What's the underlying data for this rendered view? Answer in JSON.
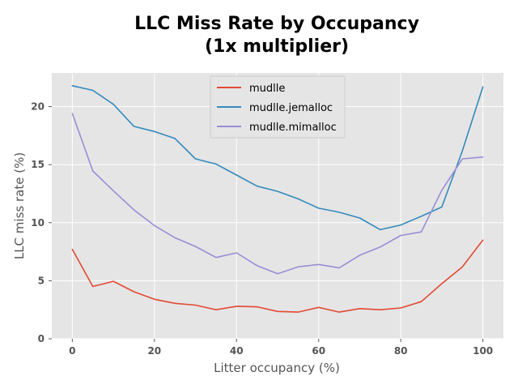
{
  "chart_data": {
    "type": "line",
    "title_lines": [
      "LLC Miss Rate by Occupancy",
      "(1x multiplier)"
    ],
    "xlabel": "Litter occupancy (%)",
    "ylabel": "LLC miss rate (%)",
    "xlim": [
      -5,
      105
    ],
    "ylim": [
      0,
      22.9
    ],
    "xticks": [
      0,
      20,
      40,
      60,
      80,
      100
    ],
    "yticks": [
      0,
      5,
      10,
      15,
      20
    ],
    "grid": true,
    "legend": "top-center",
    "x": [
      0,
      5,
      10,
      15,
      20,
      25,
      30,
      35,
      40,
      45,
      50,
      55,
      60,
      65,
      70,
      75,
      80,
      85,
      90,
      95,
      100
    ],
    "series": [
      {
        "name": "mudlle",
        "color": "#e24a33",
        "values": [
          7.7,
          4.5,
          4.95,
          4.05,
          3.4,
          3.05,
          2.9,
          2.5,
          2.8,
          2.75,
          2.35,
          2.3,
          2.7,
          2.3,
          2.6,
          2.5,
          2.65,
          3.2,
          4.75,
          6.2,
          8.5
        ]
      },
      {
        "name": "mudlle.jemalloc",
        "color": "#348abd",
        "values": [
          21.8,
          21.4,
          20.2,
          18.3,
          17.85,
          17.25,
          15.5,
          15.05,
          14.1,
          13.15,
          12.7,
          12.05,
          11.25,
          10.9,
          10.4,
          9.4,
          9.8,
          10.55,
          11.35,
          16.2,
          21.7
        ]
      },
      {
        "name": "mudlle.mimalloc",
        "color": "#988ed5",
        "values": [
          19.4,
          14.45,
          12.75,
          11.1,
          9.75,
          8.7,
          7.95,
          7.0,
          7.4,
          6.3,
          5.6,
          6.2,
          6.4,
          6.1,
          7.2,
          7.9,
          8.9,
          9.2,
          12.8,
          15.5,
          15.65
        ]
      }
    ]
  }
}
